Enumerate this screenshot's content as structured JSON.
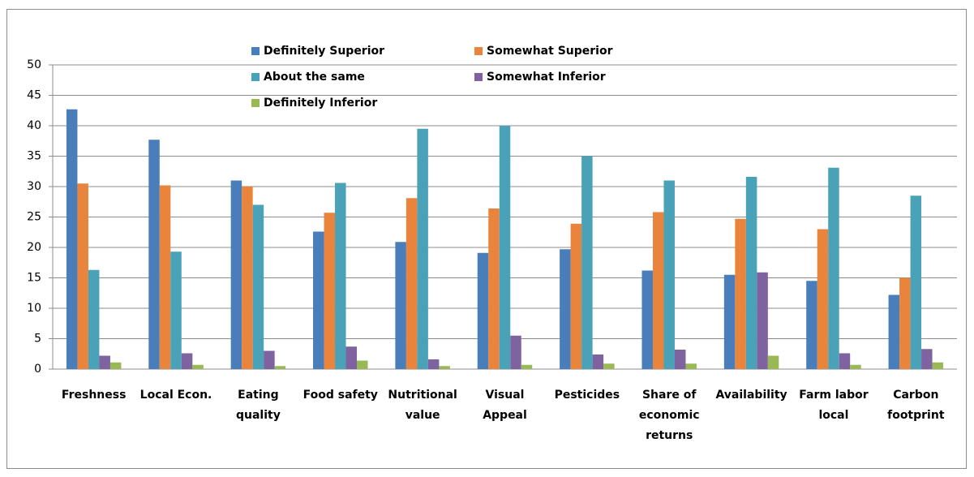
{
  "chart_data": {
    "type": "bar",
    "categories": [
      "Freshness",
      "Local Econ.",
      "Eating quality",
      "Food safety",
      "Nutritional value",
      "Visual Appeal",
      "Pesticides",
      "Share of economic returns",
      "Availability",
      "Farm labor local",
      "Carbon footprint"
    ],
    "series": [
      {
        "name": "Definitely Superior",
        "color": "#4a7ebb",
        "values": [
          42.7,
          37.7,
          31,
          22.6,
          20.9,
          19.1,
          19.7,
          16.2,
          15.5,
          14.5,
          12.2
        ]
      },
      {
        "name": "Somewhat Superior",
        "color": "#e8843c",
        "values": [
          30.5,
          30.2,
          30,
          25.7,
          28.1,
          26.4,
          23.9,
          25.8,
          24.7,
          23,
          15
        ]
      },
      {
        "name": "About the same",
        "color": "#4aa2b8",
        "values": [
          16.3,
          19.3,
          27,
          30.6,
          39.5,
          40,
          35,
          31,
          31.6,
          33.1,
          28.5
        ]
      },
      {
        "name": "Somewhat Inferior",
        "color": "#7f62a0",
        "values": [
          2.2,
          2.6,
          3,
          3.7,
          1.6,
          5.5,
          2.4,
          3.2,
          15.9,
          2.6,
          3.3
        ]
      },
      {
        "name": "Definitely Inferior",
        "color": "#98b954",
        "values": [
          1.1,
          0.7,
          0.5,
          1.4,
          0.5,
          0.7,
          0.9,
          0.9,
          2.2,
          0.7,
          1.1
        ]
      }
    ],
    "ylim": [
      0,
      50
    ],
    "yticks": [
      0,
      5,
      10,
      15,
      20,
      25,
      30,
      35,
      40,
      45,
      50
    ],
    "grid": true
  }
}
